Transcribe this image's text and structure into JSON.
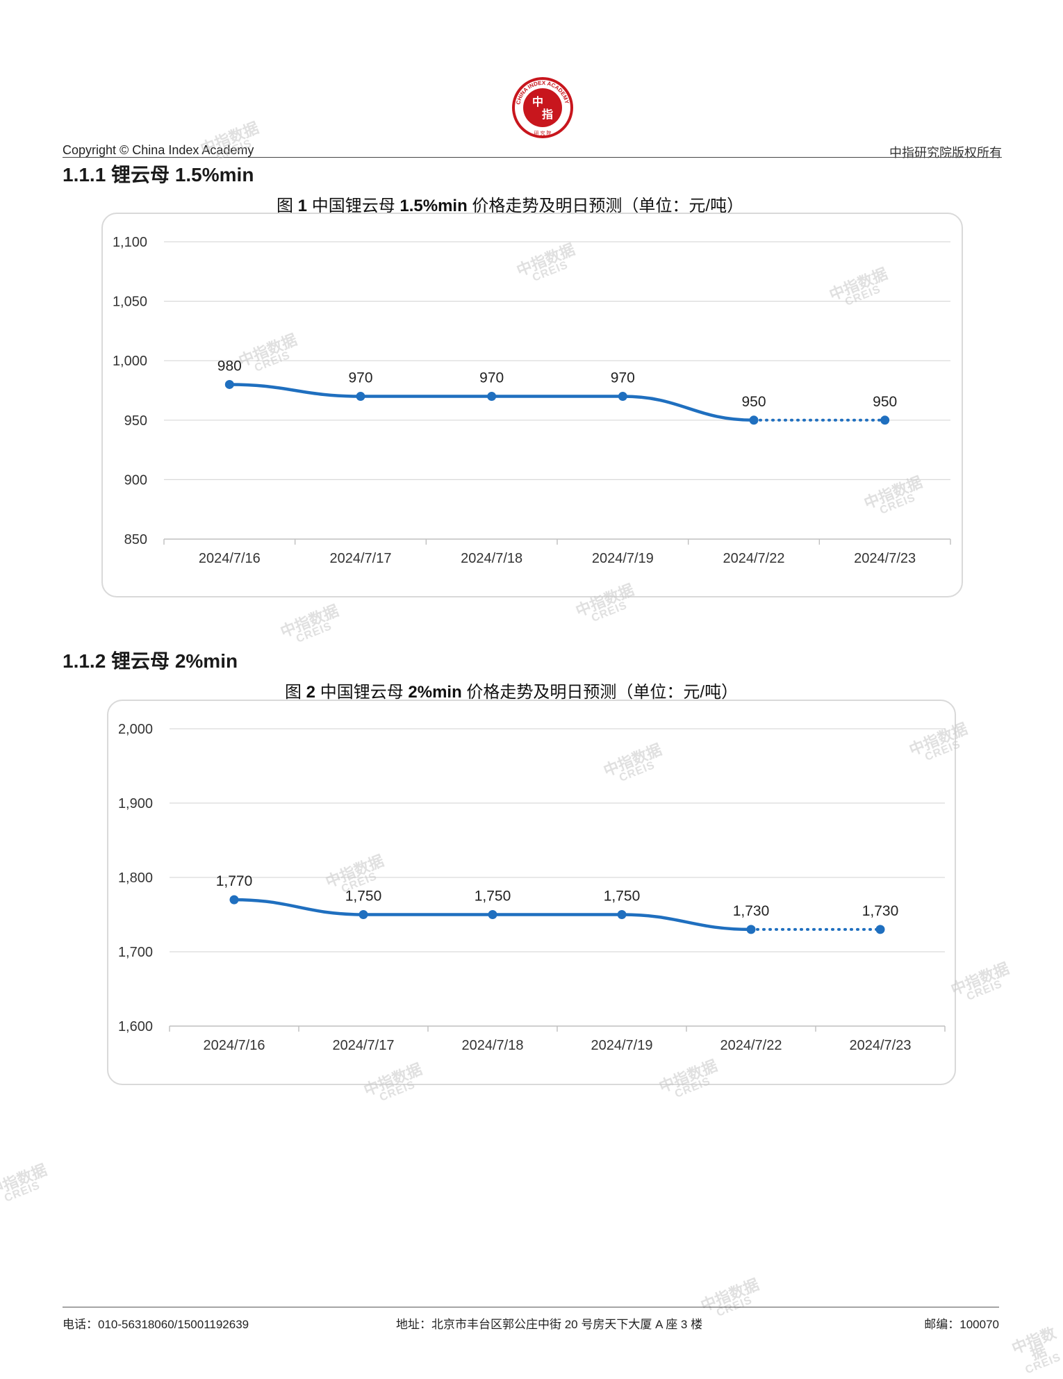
{
  "header": {
    "copyright": "Copyright © China Index Academy",
    "rights": "中指研究院版权所有"
  },
  "logo": {
    "ring_text": "CHINA INDEX ACADEMY",
    "center_top": "中",
    "center_bottom": "指",
    "bottom_text": "研 究 院",
    "color": "#c8161d"
  },
  "sections": [
    {
      "heading": "1.1.1 锂云母 1.5%min",
      "figure_title_prefix": "图 ",
      "figure_title_num": "1",
      "figure_title_mid": " 中国锂云母 ",
      "figure_title_grade": "1.5%min",
      "figure_title_rest": " 价格走势及明日预测（单位：元/吨）"
    },
    {
      "heading": "1.1.2 锂云母 2%min",
      "figure_title_prefix": "图 ",
      "figure_title_num": "2",
      "figure_title_mid": " 中国锂云母 ",
      "figure_title_grade": "2%min",
      "figure_title_rest": " 价格走势及明日预测（单位：元/吨）"
    }
  ],
  "chart_data": [
    {
      "type": "line",
      "title": "图 1 中国锂云母 1.5%min 价格走势及明日预测（单位：元/吨）",
      "categories": [
        "2024/7/16",
        "2024/7/17",
        "2024/7/18",
        "2024/7/19",
        "2024/7/22",
        "2024/7/23"
      ],
      "values": [
        980,
        970,
        970,
        970,
        950,
        950
      ],
      "data_labels": [
        "980",
        "970",
        "970",
        "970",
        "950",
        "950"
      ],
      "forecast_from_index": 4,
      "ylim": [
        850,
        1100
      ],
      "yticks": [
        850,
        900,
        950,
        1000,
        1050,
        1100
      ],
      "ytick_labels": [
        "850",
        "900",
        "950",
        "1,000",
        "1,050",
        "1,100"
      ],
      "grid": true,
      "line_color": "#1f6fbf"
    },
    {
      "type": "line",
      "title": "图 2 中国锂云母 2%min 价格走势及明日预测（单位：元/吨）",
      "categories": [
        "2024/7/16",
        "2024/7/17",
        "2024/7/18",
        "2024/7/19",
        "2024/7/22",
        "2024/7/23"
      ],
      "values": [
        1770,
        1750,
        1750,
        1750,
        1730,
        1730
      ],
      "data_labels": [
        "1,770",
        "1,750",
        "1,750",
        "1,750",
        "1,730",
        "1,730"
      ],
      "forecast_from_index": 4,
      "ylim": [
        1600,
        2000
      ],
      "yticks": [
        1600,
        1700,
        1800,
        1900,
        2000
      ],
      "ytick_labels": [
        "1,600",
        "1,700",
        "1,800",
        "1,900",
        "2,000"
      ],
      "grid": true,
      "line_color": "#1f6fbf"
    }
  ],
  "footer": {
    "phone": "电话：010-56318060/15001192639",
    "address": "地址：北京市丰台区郭公庄中街 20 号房天下大厦 A 座 3 楼",
    "postcode": "邮编：100070"
  },
  "watermark": {
    "cn": "中指数据",
    "en": "CREIS"
  }
}
